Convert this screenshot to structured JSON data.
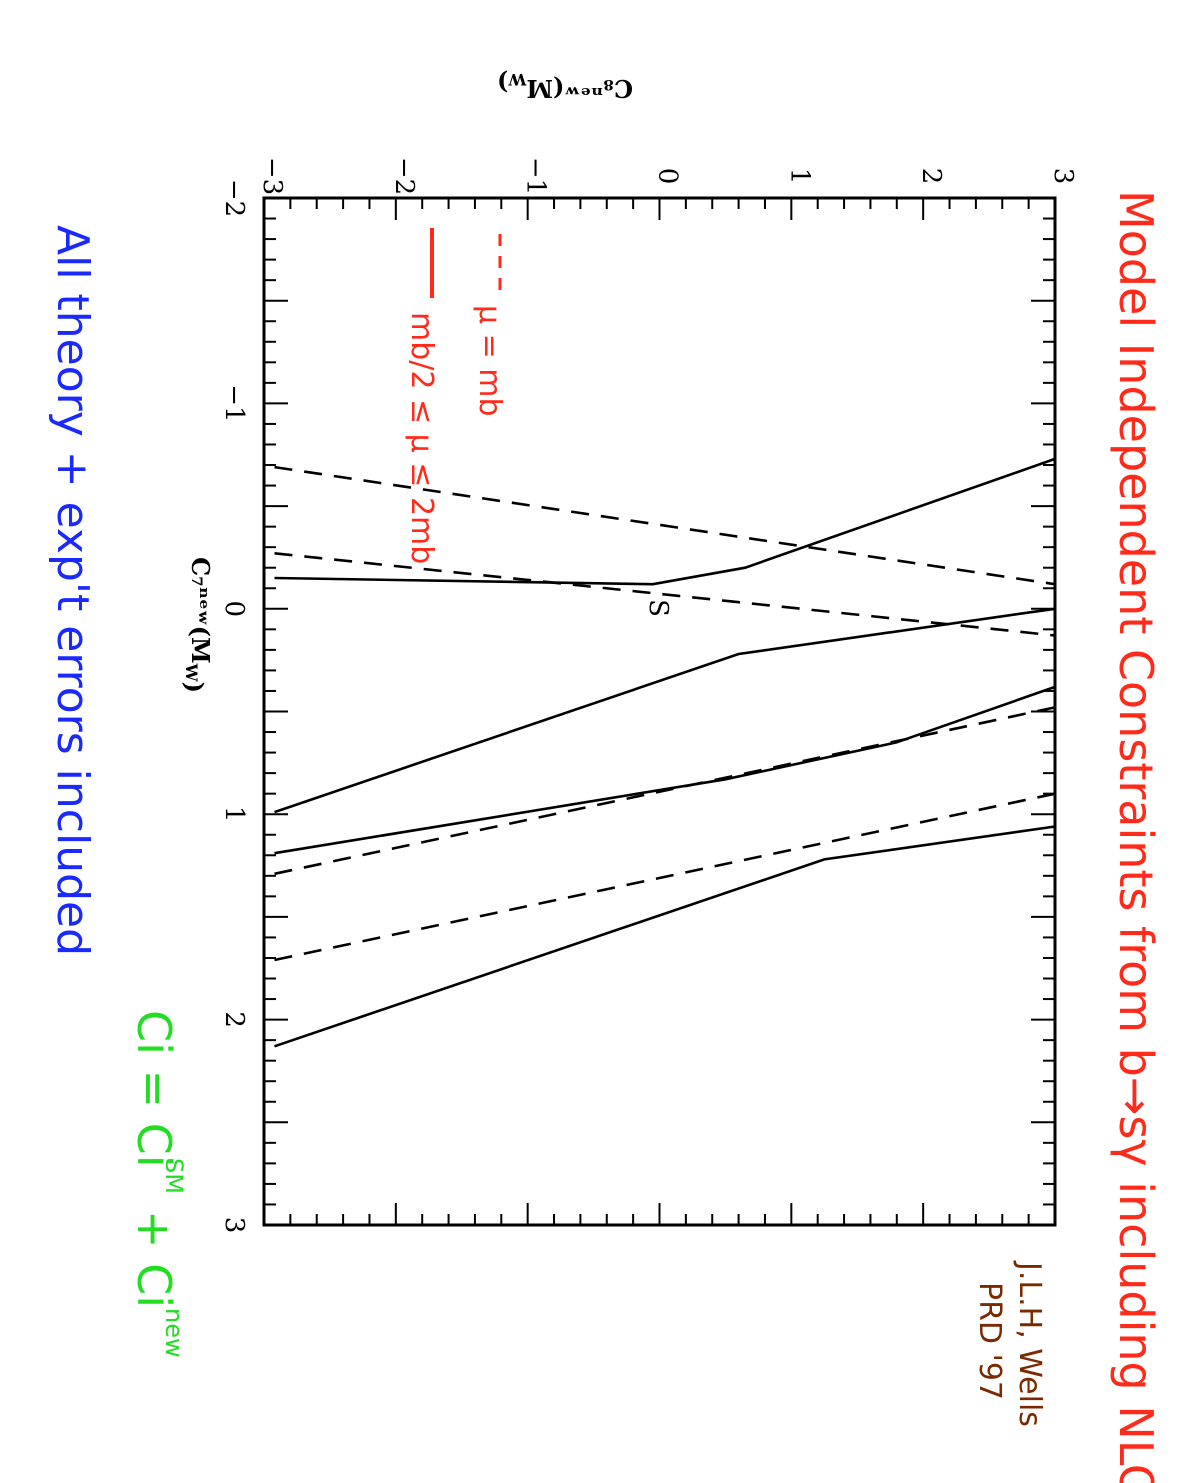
{
  "chart_data": {
    "type": "line",
    "orientation": "rotated 90 degrees clockwise on the page",
    "title": "Model Independent Constraints from b→sγ including NLO",
    "xlabel": "C7new(MW)",
    "ylabel": "C8new(MW)",
    "xlim": [
      -2,
      3
    ],
    "ylim": [
      -3,
      3
    ],
    "x_ticks": [
      "−2",
      "−1",
      "0",
      "1",
      "2",
      "3"
    ],
    "y_ticks": [
      "−3",
      "−2",
      "−1",
      "0",
      "1",
      "2",
      "3"
    ],
    "grid": false,
    "legend_placement": "upper-left",
    "series": [
      {
        "name": "μ = mb",
        "style": "dashed",
        "color": "#000000",
        "segments": [
          [
            [
              -0.27,
              -2.92
            ],
            [
              0.13,
              3.0
            ]
          ],
          [
            [
              -0.69,
              -2.92
            ],
            [
              -0.12,
              3.0
            ]
          ],
          [
            [
              1.29,
              -2.92
            ],
            [
              0.48,
              3.0
            ]
          ],
          [
            [
              1.71,
              -2.92
            ],
            [
              0.9,
              3.0
            ]
          ]
        ]
      },
      {
        "name": "mb/2 ≤ μ ≤ 2mb",
        "style": "solid",
        "color": "#000000",
        "segments": [
          [
            [
              -0.15,
              -2.92
            ],
            [
              -0.12,
              -0.05
            ],
            [
              -0.2,
              0.65
            ],
            [
              -0.73,
              3.0
            ]
          ],
          [
            [
              0.99,
              -2.92
            ],
            [
              0.22,
              0.6
            ],
            [
              0.0,
              3.0
            ]
          ],
          [
            [
              1.19,
              -2.92
            ],
            [
              0.83,
              0.5
            ],
            [
              0.65,
              1.8
            ],
            [
              0.38,
              3.0
            ]
          ],
          [
            [
              2.13,
              -2.92
            ],
            [
              1.22,
              1.25
            ],
            [
              1.06,
              3.0
            ]
          ]
        ]
      }
    ],
    "annotations": {
      "point_label": "S",
      "note_blue": "All theory + exp't errors included",
      "note_green_lhs": "Ci = Ci",
      "note_green_sm": "SM",
      "note_green_plus": "+ Ci",
      "note_green_new": "new",
      "credit_line1": "J.L.H, Wells",
      "credit_line2": "PRD '97"
    },
    "colors": {
      "title": "#ff2a1a",
      "legend": "#ff2a1a",
      "note_blue": "#1a2aff",
      "note_green": "#22dd22",
      "credit": "#7a2a00"
    }
  }
}
